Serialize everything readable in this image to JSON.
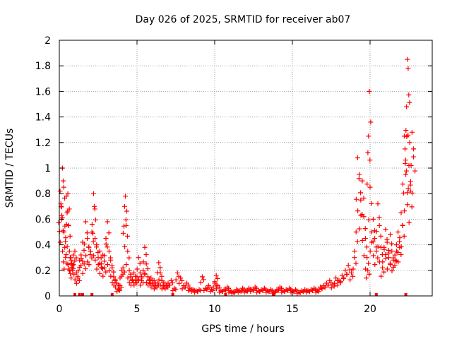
{
  "chart_data": {
    "type": "scatter",
    "title": "Day 026 of 2025, SRMTID for receiver ab07",
    "xlabel": "GPS time / hours",
    "ylabel": "SRMTID / TECUs",
    "xlim": [
      0,
      24
    ],
    "ylim": [
      0,
      2
    ],
    "xticks": [
      0,
      5,
      10,
      15,
      20
    ],
    "yticks": [
      0,
      0.2,
      0.4,
      0.6,
      0.8,
      1,
      1.2,
      1.4,
      1.6,
      1.8,
      2
    ],
    "ytick_labels": [
      "0",
      "0.2",
      "0.4",
      "0.6",
      "0.8",
      "1",
      "1.2",
      "1.4",
      "1.6",
      "1.8",
      "2"
    ],
    "xtick_labels": [
      "0",
      "5",
      "10",
      "15",
      "20"
    ],
    "grid": true,
    "marker": "+",
    "color": "#ff0000",
    "series": [
      {
        "name": "SRMTID",
        "points": [
          [
            0.05,
            0.82
          ],
          [
            0.1,
            0.72
          ],
          [
            0.15,
            0.6
          ],
          [
            0.2,
            1.0
          ],
          [
            0.25,
            0.9
          ],
          [
            0.3,
            0.5
          ],
          [
            0.35,
            0.38
          ],
          [
            0.4,
            0.3
          ],
          [
            0.45,
            0.78
          ],
          [
            0.5,
            0.65
          ],
          [
            0.55,
            0.8
          ],
          [
            0.6,
            0.55
          ],
          [
            0.65,
            0.35
          ],
          [
            0.7,
            0.3
          ],
          [
            0.75,
            0.28
          ],
          [
            0.8,
            0.25
          ],
          [
            0.85,
            0.2
          ],
          [
            0.9,
            0.32
          ],
          [
            1.0,
            0.35
          ],
          [
            1.1,
            0.18
          ],
          [
            1.2,
            0.14
          ],
          [
            1.3,
            0.28
          ],
          [
            1.4,
            0.32
          ],
          [
            1.5,
            0.42
          ],
          [
            1.6,
            0.25
          ],
          [
            1.7,
            0.58
          ],
          [
            1.8,
            0.45
          ],
          [
            1.9,
            0.38
          ],
          [
            2.0,
            0.35
          ],
          [
            2.1,
            0.5
          ],
          [
            2.2,
            0.8
          ],
          [
            2.25,
            0.7
          ],
          [
            2.3,
            0.45
          ],
          [
            2.4,
            0.4
          ],
          [
            2.5,
            0.3
          ],
          [
            2.6,
            0.35
          ],
          [
            2.7,
            0.25
          ],
          [
            2.8,
            0.32
          ],
          [
            2.9,
            0.22
          ],
          [
            3.0,
            0.45
          ],
          [
            3.1,
            0.58
          ],
          [
            3.2,
            0.35
          ],
          [
            3.3,
            0.28
          ],
          [
            3.4,
            0.22
          ],
          [
            3.5,
            0.15
          ],
          [
            3.6,
            0.12
          ],
          [
            3.7,
            0.1
          ],
          [
            3.8,
            0.05
          ],
          [
            3.9,
            0.08
          ],
          [
            4.0,
            0.2
          ],
          [
            4.1,
            0.22
          ],
          [
            4.2,
            0.7
          ],
          [
            4.25,
            0.78
          ],
          [
            4.3,
            0.55
          ],
          [
            4.4,
            0.35
          ],
          [
            4.5,
            0.2
          ],
          [
            4.6,
            0.15
          ],
          [
            4.7,
            0.12
          ],
          [
            4.8,
            0.18
          ],
          [
            4.9,
            0.12
          ],
          [
            5.0,
            0.15
          ],
          [
            5.1,
            0.3
          ],
          [
            5.2,
            0.18
          ],
          [
            5.3,
            0.12
          ],
          [
            5.4,
            0.2
          ],
          [
            5.5,
            0.38
          ],
          [
            5.6,
            0.25
          ],
          [
            5.7,
            0.15
          ],
          [
            5.8,
            0.12
          ],
          [
            5.9,
            0.14
          ],
          [
            6.0,
            0.1
          ],
          [
            6.1,
            0.12
          ],
          [
            6.2,
            0.08
          ],
          [
            6.3,
            0.1
          ],
          [
            6.4,
            0.26
          ],
          [
            6.5,
            0.18
          ],
          [
            6.6,
            0.12
          ],
          [
            6.7,
            0.08
          ],
          [
            6.8,
            0.1
          ],
          [
            6.9,
            0.08
          ],
          [
            7.0,
            0.1
          ],
          [
            7.2,
            0.12
          ],
          [
            7.4,
            0.06
          ],
          [
            7.6,
            0.18
          ],
          [
            7.8,
            0.14
          ],
          [
            8.0,
            0.08
          ],
          [
            8.2,
            0.1
          ],
          [
            8.4,
            0.06
          ],
          [
            8.6,
            0.05
          ],
          [
            8.8,
            0.04
          ],
          [
            9.0,
            0.05
          ],
          [
            9.2,
            0.15
          ],
          [
            9.4,
            0.06
          ],
          [
            9.6,
            0.08
          ],
          [
            9.8,
            0.05
          ],
          [
            10.0,
            0.1
          ],
          [
            10.1,
            0.16
          ],
          [
            10.2,
            0.08
          ],
          [
            10.4,
            0.04
          ],
          [
            10.6,
            0.05
          ],
          [
            10.8,
            0.07
          ],
          [
            11.0,
            0.04
          ],
          [
            11.2,
            0.03
          ],
          [
            11.4,
            0.05
          ],
          [
            11.6,
            0.04
          ],
          [
            11.8,
            0.06
          ],
          [
            12.0,
            0.04
          ],
          [
            12.2,
            0.06
          ],
          [
            12.4,
            0.05
          ],
          [
            12.6,
            0.07
          ],
          [
            12.8,
            0.04
          ],
          [
            13.0,
            0.05
          ],
          [
            13.2,
            0.06
          ],
          [
            13.4,
            0.04
          ],
          [
            13.6,
            0.05
          ],
          [
            13.8,
            0.03
          ],
          [
            14.0,
            0.05
          ],
          [
            14.2,
            0.07
          ],
          [
            14.4,
            0.04
          ],
          [
            14.6,
            0.05
          ],
          [
            14.8,
            0.06
          ],
          [
            15.0,
            0.04
          ],
          [
            15.2,
            0.05
          ],
          [
            15.4,
            0.03
          ],
          [
            15.6,
            0.04
          ],
          [
            15.8,
            0.05
          ],
          [
            16.0,
            0.04
          ],
          [
            16.2,
            0.05
          ],
          [
            16.4,
            0.06
          ],
          [
            16.6,
            0.04
          ],
          [
            16.8,
            0.07
          ],
          [
            17.0,
            0.08
          ],
          [
            17.2,
            0.1
          ],
          [
            17.4,
            0.12
          ],
          [
            17.6,
            0.09
          ],
          [
            17.8,
            0.14
          ],
          [
            18.0,
            0.12
          ],
          [
            18.2,
            0.16
          ],
          [
            18.4,
            0.2
          ],
          [
            18.6,
            0.24
          ],
          [
            18.8,
            0.18
          ],
          [
            19.0,
            0.3
          ],
          [
            19.1,
            0.5
          ],
          [
            19.2,
            1.08
          ],
          [
            19.3,
            0.95
          ],
          [
            19.4,
            0.75
          ],
          [
            19.5,
            0.9
          ],
          [
            19.6,
            0.62
          ],
          [
            19.7,
            0.45
          ],
          [
            19.8,
            0.3
          ],
          [
            19.85,
            0.2
          ],
          [
            19.9,
            1.25
          ],
          [
            19.95,
            1.6
          ],
          [
            20.0,
            0.85
          ],
          [
            20.1,
            0.5
          ],
          [
            20.2,
            0.6
          ],
          [
            20.3,
            0.45
          ],
          [
            20.4,
            0.35
          ],
          [
            20.5,
            0.72
          ],
          [
            20.6,
            0.55
          ],
          [
            20.7,
            0.38
          ],
          [
            20.8,
            0.22
          ],
          [
            20.9,
            0.38
          ],
          [
            21.0,
            0.52
          ],
          [
            21.1,
            0.42
          ],
          [
            21.2,
            0.3
          ],
          [
            21.3,
            0.48
          ],
          [
            21.4,
            0.35
          ],
          [
            21.5,
            0.28
          ],
          [
            21.6,
            0.32
          ],
          [
            21.7,
            0.4
          ],
          [
            21.8,
            0.5
          ],
          [
            21.9,
            0.38
          ],
          [
            22.0,
            0.65
          ],
          [
            22.1,
            0.55
          ],
          [
            22.2,
            1.25
          ],
          [
            22.25,
            1.15
          ],
          [
            22.3,
            0.95
          ],
          [
            22.35,
            1.48
          ],
          [
            22.4,
            1.85
          ],
          [
            22.45,
            1.78
          ],
          [
            22.5,
            1.02
          ],
          [
            22.55,
            1.2
          ],
          [
            22.6,
            0.82
          ],
          [
            22.7,
            1.28
          ],
          [
            22.8,
            1.15
          ]
        ]
      }
    ],
    "zero_markers_x": [
      1.0,
      1.3,
      1.5,
      2.1,
      3.4,
      7.3,
      10.7,
      13.8,
      20.4,
      22.3
    ]
  }
}
